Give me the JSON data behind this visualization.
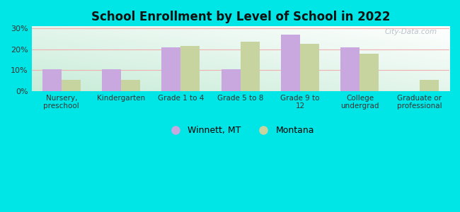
{
  "title": "School Enrollment by Level of School in 2022",
  "categories": [
    "Nursery,\npreschool",
    "Kindergarten",
    "Grade 1 to 4",
    "Grade 5 to 8",
    "Grade 9 to\n12",
    "College\nundergrad",
    "Graduate or\nprofessional"
  ],
  "winnett_values": [
    10.5,
    10.5,
    21.0,
    10.5,
    27.0,
    21.0,
    0
  ],
  "montana_values": [
    5.5,
    5.5,
    21.5,
    23.5,
    22.5,
    18.0,
    5.5
  ],
  "winnett_color": "#c9a8e0",
  "montana_color": "#c8d4a0",
  "background_color": "#00e5e5",
  "yticks": [
    0,
    10,
    20,
    30
  ],
  "ylim": [
    0,
    31
  ],
  "legend_labels": [
    "Winnett, MT",
    "Montana"
  ],
  "watermark": "City-Data.com",
  "bar_width": 0.32,
  "grid_color": "#f0b0b0",
  "gradient_colors": [
    "#c8ecd8",
    "#ffffff"
  ],
  "n_categories": 7
}
